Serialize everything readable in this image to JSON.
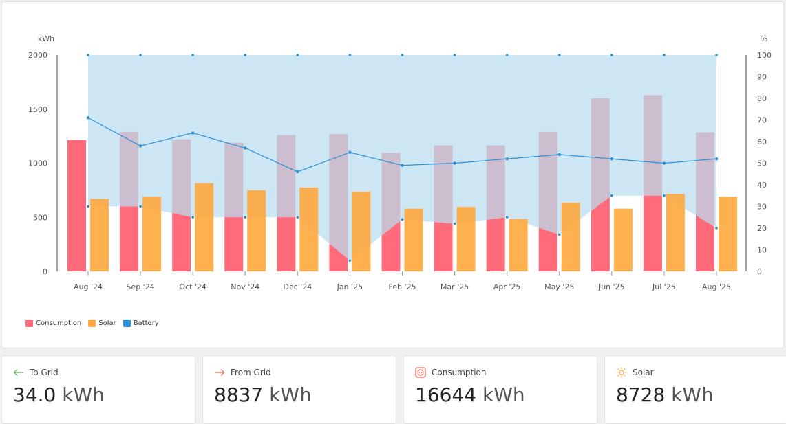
{
  "chart_data": {
    "type": "bar",
    "categories": [
      "Aug '24",
      "Sep '24",
      "Oct '24",
      "Nov '24",
      "Dec '24",
      "Jan '25",
      "Feb '25",
      "Mar '25",
      "Apr '25",
      "May '25",
      "Jun '25",
      "Jul '25",
      "Aug '25"
    ],
    "left_axis": {
      "label": "kWh",
      "range": [
        0,
        2000
      ],
      "ticks": [
        "0",
        "500",
        "1000",
        "1500",
        "2000"
      ]
    },
    "right_axis": {
      "label": "%",
      "range": [
        0,
        100
      ],
      "ticks": [
        "0",
        "10",
        "20",
        "30",
        "40",
        "50",
        "60",
        "70",
        "80",
        "90",
        "100"
      ]
    },
    "series": [
      {
        "name": "Consumption",
        "type": "bar",
        "axis": "left",
        "values": [
          1215,
          1290,
          1220,
          1190,
          1260,
          1270,
          1095,
          1165,
          1165,
          1290,
          1600,
          1630,
          1285
        ]
      },
      {
        "name": "Solar",
        "type": "bar",
        "axis": "left",
        "values": [
          670,
          690,
          815,
          750,
          775,
          735,
          580,
          595,
          485,
          635,
          580,
          715,
          690
        ]
      },
      {
        "name": "Battery",
        "type": "area",
        "axis": "right",
        "average": [
          71,
          58,
          64,
          57,
          46,
          55,
          49,
          50,
          52,
          54,
          52,
          50,
          52
        ],
        "max": [
          100,
          100,
          100,
          100,
          100,
          100,
          100,
          100,
          100,
          100,
          100,
          100,
          100
        ],
        "min": [
          30,
          30,
          25,
          25,
          25,
          5,
          24,
          22,
          25,
          17,
          35,
          35,
          20
        ]
      }
    ],
    "grid": false,
    "legend_position": "bottom-left",
    "colors": {
      "consumption": "#ff6b7a",
      "solar": "#ffa940",
      "battery": "#2b8fd6",
      "battery_fill": "#b9dcf0"
    }
  },
  "legend": [
    {
      "label": "Consumption",
      "color": "#ff6b7a"
    },
    {
      "label": "Solar",
      "color": "#ffa940"
    },
    {
      "label": "Battery",
      "color": "#2b8fd6"
    }
  ],
  "stats": {
    "to_grid": {
      "label": "To Grid",
      "value": "34.0",
      "unit": "kWh",
      "icon": "arrow-left-icon",
      "color": "#5cb85c"
    },
    "from_grid": {
      "label": "From Grid",
      "value": "8837",
      "unit": "kWh",
      "icon": "arrow-right-icon",
      "color": "#f06a5a"
    },
    "consumption": {
      "label": "Consumption",
      "value": "16644",
      "unit": "kWh",
      "icon": "outlet-icon",
      "color": "#f06a5a"
    },
    "solar": {
      "label": "Solar",
      "value": "8728",
      "unit": "kWh",
      "icon": "sun-icon",
      "color": "#ffa940"
    }
  }
}
